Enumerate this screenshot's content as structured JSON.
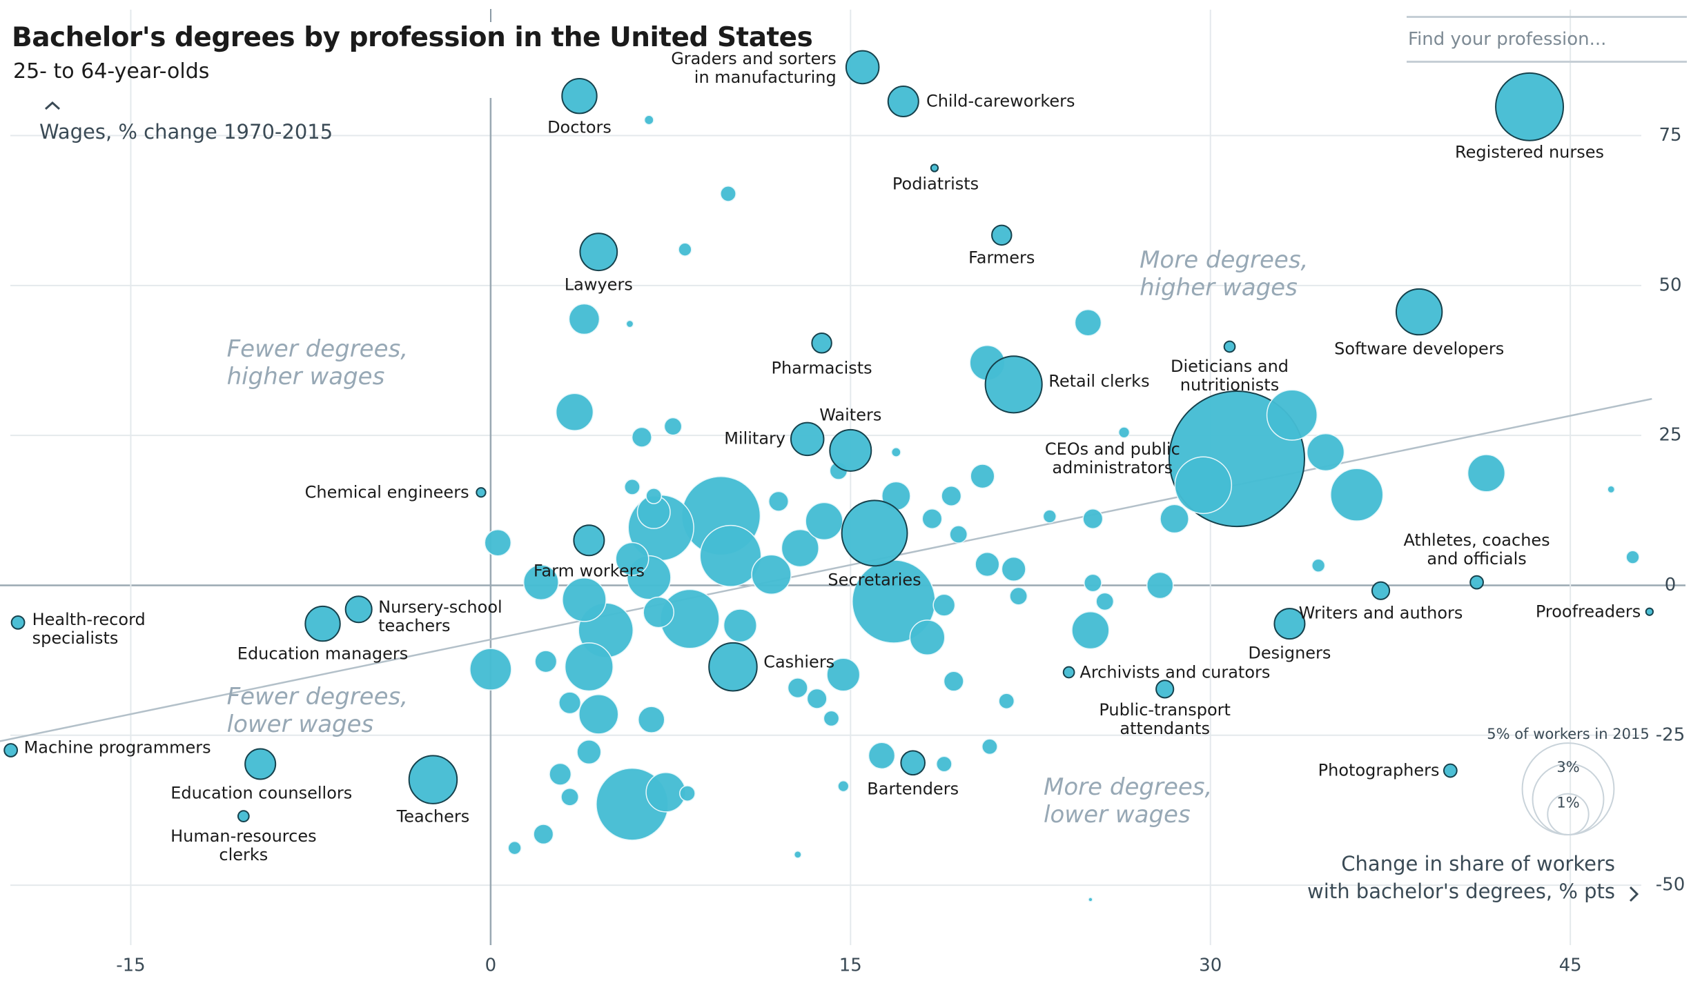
{
  "chart_data": {
    "type": "bubble",
    "title": "Bachelor's degrees by profession in the United States",
    "subtitle": "25- to 64-year-olds",
    "y_label": "Wages, % change 1970-2015",
    "x_label": "Change in share of workers\nwith bachelor's degrees, % pts",
    "search_placeholder": "Find your profession...",
    "quadrants": [
      "Fewer degrees,\nhigher wages",
      "Fewer degrees,\nlower wages",
      "More degrees,\nhigher wages",
      "More degrees,\nlower wages"
    ],
    "color": "#45bcd3",
    "xlim": [
      -20.45,
      49.8
    ],
    "ylim": [
      -60,
      96
    ],
    "xticks": [
      -15,
      0,
      15,
      30,
      45
    ],
    "yticks": [
      -50,
      -25,
      0,
      25,
      50,
      75
    ],
    "grid": true,
    "size_legend": [
      {
        "value": 5,
        "label": "5% of workers in 2015"
      },
      {
        "value": 3,
        "label": "3%"
      },
      {
        "value": 1,
        "label": "1%"
      }
    ],
    "trend_line": {
      "x": [
        -20.45,
        48.4
      ],
      "y": [
        -26,
        31.1
      ]
    },
    "points": [
      {
        "label": "CEOs and public\nadministrators",
        "x": 31.1,
        "y": 21.1,
        "size": 10.9
      },
      {
        "x": 16.8,
        "y": -2.7,
        "size": 4.09
      },
      {
        "x": 9.6,
        "y": 11.6,
        "size": 3.67
      },
      {
        "x": 5.9,
        "y": -36.5,
        "size": 3.08
      },
      {
        "x": 7.1,
        "y": 9.6,
        "size": 2.55
      },
      {
        "x": 10,
        "y": 4.9,
        "size": 2.22
      },
      {
        "x": 8.3,
        "y": -5.6,
        "size": 2.06
      },
      {
        "x": 29.7,
        "y": 16.7,
        "size": 1.91
      },
      {
        "x": 4.8,
        "y": -7.5,
        "size": 1.77
      },
      {
        "x": 36.1,
        "y": 15.1,
        "size": 1.63
      },
      {
        "x": 33.4,
        "y": 28.4,
        "size": 1.5
      },
      {
        "x": 4.1,
        "y": -13.6,
        "size": 1.37
      },
      {
        "x": 3.9,
        "y": -2.4,
        "size": 1.13
      },
      {
        "x": 6.6,
        "y": 1.3,
        "size": 1.13
      },
      {
        "x": 0,
        "y": -14,
        "size": 1.02
      },
      {
        "x": 11.7,
        "y": 1.8,
        "size": 0.92
      },
      {
        "x": 4.5,
        "y": -21.5,
        "size": 0.92
      },
      {
        "x": 7.3,
        "y": -34.5,
        "size": 0.92
      },
      {
        "x": 3.5,
        "y": 28.9,
        "size": 0.82
      },
      {
        "x": 34.8,
        "y": 22.2,
        "size": 0.82
      },
      {
        "x": 41.5,
        "y": 18.7,
        "size": 0.82
      },
      {
        "x": 12.9,
        "y": 6.2,
        "size": 0.82
      },
      {
        "x": 13.9,
        "y": 10.7,
        "size": 0.82
      },
      {
        "x": 25,
        "y": -7.5,
        "size": 0.82
      },
      {
        "x": 20.7,
        "y": 37.1,
        "size": 0.72
      },
      {
        "x": 2.1,
        "y": 0.5,
        "size": 0.72
      },
      {
        "x": 18.2,
        "y": -8.7,
        "size": 0.72
      },
      {
        "x": 6.8,
        "y": 12.2,
        "size": 0.64
      },
      {
        "x": 5.9,
        "y": 4.4,
        "size": 0.64
      },
      {
        "x": 10.4,
        "y": -6.7,
        "size": 0.64
      },
      {
        "x": 14.7,
        "y": -14.9,
        "size": 0.64
      },
      {
        "x": 3.9,
        "y": 44.4,
        "size": 0.55
      },
      {
        "x": 7,
        "y": -4.5,
        "size": 0.55
      },
      {
        "x": 28.5,
        "y": 11.1,
        "size": 0.48
      },
      {
        "x": 16.9,
        "y": 14.9,
        "size": 0.48
      },
      {
        "x": 24.9,
        "y": 43.8,
        "size": 0.41
      },
      {
        "x": 0.3,
        "y": 7.1,
        "size": 0.41
      },
      {
        "x": 27.9,
        "y": 0,
        "size": 0.41
      },
      {
        "x": 6.7,
        "y": -22.4,
        "size": 0.41
      },
      {
        "x": 16.3,
        "y": -28.4,
        "size": 0.41
      },
      {
        "x": 20.5,
        "y": 18.2,
        "size": 0.34
      },
      {
        "x": 20.7,
        "y": 3.5,
        "size": 0.34
      },
      {
        "x": 21.8,
        "y": 2.7,
        "size": 0.34
      },
      {
        "x": 4.1,
        "y": -27.8,
        "size": 0.34
      },
      {
        "x": 3.3,
        "y": -19.6,
        "size": 0.28
      },
      {
        "x": 2.3,
        "y": -12.7,
        "size": 0.28
      },
      {
        "x": 2.9,
        "y": -31.5,
        "size": 0.28
      },
      {
        "x": 18.9,
        "y": -3.3,
        "size": 0.28
      },
      {
        "x": 6.3,
        "y": 24.7,
        "size": 0.23
      },
      {
        "x": 25.1,
        "y": 11.1,
        "size": 0.23
      },
      {
        "x": 19.2,
        "y": 14.9,
        "size": 0.23
      },
      {
        "x": 18.4,
        "y": 11.1,
        "size": 0.23
      },
      {
        "x": 12,
        "y": 14,
        "size": 0.23
      },
      {
        "x": 2.2,
        "y": -41.5,
        "size": 0.23
      },
      {
        "x": 12.8,
        "y": -17.1,
        "size": 0.23
      },
      {
        "x": 13.6,
        "y": -18.9,
        "size": 0.23
      },
      {
        "x": 19.3,
        "y": -16,
        "size": 0.23
      },
      {
        "x": 7.6,
        "y": 26.5,
        "size": 0.18
      },
      {
        "x": 19.5,
        "y": 8.5,
        "size": 0.18
      },
      {
        "x": 22,
        "y": -1.8,
        "size": 0.18
      },
      {
        "x": 25.1,
        "y": 0.4,
        "size": 0.18
      },
      {
        "x": 25.6,
        "y": -2.7,
        "size": 0.18
      },
      {
        "x": 3.3,
        "y": -35.3,
        "size": 0.18
      },
      {
        "x": 14.5,
        "y": 19.1,
        "size": 0.18
      },
      {
        "x": 9.9,
        "y": 65.3,
        "size": 0.14
      },
      {
        "x": 14.2,
        "y": -22.2,
        "size": 0.14
      },
      {
        "x": 18.9,
        "y": -29.8,
        "size": 0.14
      },
      {
        "x": 20.8,
        "y": -26.9,
        "size": 0.14
      },
      {
        "x": 21.5,
        "y": -19.3,
        "size": 0.14
      },
      {
        "x": 8.2,
        "y": -34.7,
        "size": 0.14
      },
      {
        "x": 6.8,
        "y": 14.9,
        "size": 0.14
      },
      {
        "x": 5.9,
        "y": 16.4,
        "size": 0.14
      },
      {
        "x": 8.1,
        "y": 56,
        "size": 0.1
      },
      {
        "x": 1,
        "y": -43.8,
        "size": 0.1
      },
      {
        "x": 34.5,
        "y": 3.3,
        "size": 0.1
      },
      {
        "x": 47.6,
        "y": 4.7,
        "size": 0.1
      },
      {
        "x": 23.3,
        "y": 11.5,
        "size": 0.1
      },
      {
        "x": 14.7,
        "y": -33.5,
        "size": 0.07
      },
      {
        "x": 26.4,
        "y": 25.5,
        "size": 0.07
      },
      {
        "x": 6.6,
        "y": 77.6,
        "size": 0.05
      },
      {
        "x": 16.9,
        "y": 22.2,
        "size": 0.05
      },
      {
        "x": 5.8,
        "y": 43.6,
        "size": 0.03
      },
      {
        "x": 46.7,
        "y": 16,
        "size": 0.03
      },
      {
        "x": 12.8,
        "y": -44.9,
        "size": 0.03
      },
      {
        "x": 25,
        "y": -52.4,
        "size": 0.01
      },
      {
        "label": "Doctors",
        "x": 3.7,
        "y": 81.6,
        "size": 0.72
      },
      {
        "label": "Graders and sorters\nin manufacturing",
        "x": 15.5,
        "y": 86.4,
        "size": 0.64
      },
      {
        "label": "Child-careworkers",
        "x": 17.2,
        "y": 80.7,
        "size": 0.55
      },
      {
        "label": "Podiatrists",
        "x": 18.5,
        "y": 69.6,
        "size": 0.03
      },
      {
        "label": "Farmers",
        "x": 21.3,
        "y": 58.4,
        "size": 0.23
      },
      {
        "label": "Lawyers",
        "x": 4.5,
        "y": 55.6,
        "size": 0.82
      },
      {
        "label": "Registered nurses",
        "x": 43.3,
        "y": 79.8,
        "size": 2.72
      },
      {
        "label": "Pharmacists",
        "x": 13.8,
        "y": 40.4,
        "size": 0.23
      },
      {
        "label": "Retail clerks",
        "x": 21.8,
        "y": 33.5,
        "size": 1.91
      },
      {
        "label": "Dieticians and\nnutritionists",
        "x": 30.8,
        "y": 39.8,
        "size": 0.07
      },
      {
        "label": "Software developers",
        "x": 38.7,
        "y": 45.6,
        "size": 1.25
      },
      {
        "label": "Military",
        "x": 13.2,
        "y": 24.4,
        "size": 0.64
      },
      {
        "label": "Waiters",
        "x": 15,
        "y": 22.5,
        "size": 1.02
      },
      {
        "label": "Chemical engineers",
        "x": -0.4,
        "y": 15.5,
        "size": 0.05
      },
      {
        "label": "Farm workers",
        "x": 4.1,
        "y": 7.5,
        "size": 0.55
      },
      {
        "label": "Secretaries",
        "x": 16,
        "y": 8.7,
        "size": 2.55
      },
      {
        "label": "Athletes, coaches\nand officials",
        "x": 41.1,
        "y": 0.5,
        "size": 0.1
      },
      {
        "label": "Proofreaders",
        "x": 48.3,
        "y": -4.4,
        "size": 0.03
      },
      {
        "label": "Writers and authors",
        "x": 37.1,
        "y": -0.9,
        "size": 0.18
      },
      {
        "label": "Designers",
        "x": 33.3,
        "y": -6.4,
        "size": 0.55
      },
      {
        "label": "Health-record\nspecialists",
        "x": -19.7,
        "y": -6.2,
        "size": 0.1
      },
      {
        "label": "Nursery-school\nteachers",
        "x": -5.5,
        "y": -4,
        "size": 0.41
      },
      {
        "label": "Education managers",
        "x": -7,
        "y": -6.4,
        "size": 0.72
      },
      {
        "label": "Cashiers",
        "x": 10.1,
        "y": -13.6,
        "size": 1.37
      },
      {
        "label": "Archivists and curators",
        "x": 24.1,
        "y": -14.5,
        "size": 0.07
      },
      {
        "label": "Public-transport\nattendants",
        "x": 28.1,
        "y": -17.3,
        "size": 0.18
      },
      {
        "label": "Machine programmers",
        "x": -20,
        "y": -27.5,
        "size": 0.1
      },
      {
        "label": "Education counsellors",
        "x": -9.6,
        "y": -29.8,
        "size": 0.55
      },
      {
        "label": "Human-resources\nclerks",
        "x": -10.3,
        "y": -38.5,
        "size": 0.07
      },
      {
        "label": "Teachers",
        "x": -2.4,
        "y": -32.4,
        "size": 1.37
      },
      {
        "label": "Bartenders",
        "x": 17.6,
        "y": -29.6,
        "size": 0.34
      },
      {
        "label": "Photographers",
        "x": 40,
        "y": -30.9,
        "size": 0.1
      }
    ]
  }
}
